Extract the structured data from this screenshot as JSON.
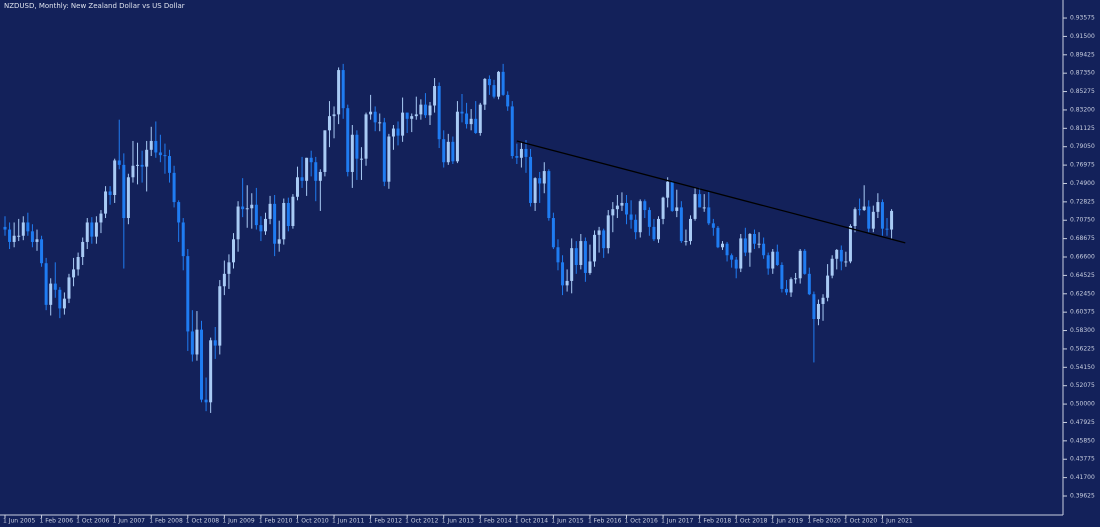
{
  "chart_data": {
    "type": "candlestick",
    "title": "NZDUSD, Monthly: New Zealand Dollar vs US Dollar",
    "background": "#13215a",
    "up_color": "#a9cbf5",
    "down_color": "#1f7cf2",
    "categories": [
      "1 Jun 2005",
      null,
      null,
      null,
      null,
      null,
      null,
      null,
      "1 Feb 2006",
      null,
      null,
      null,
      null,
      null,
      null,
      null,
      "1 Oct 2006",
      null,
      null,
      null,
      null,
      null,
      null,
      null,
      "1 Jun 2007",
      null,
      null,
      null,
      null,
      null,
      null,
      null,
      "1 Feb 2008",
      null,
      null,
      null,
      null,
      null,
      null,
      null,
      "1 Oct 2008",
      null,
      null,
      null,
      null,
      null,
      null,
      null,
      "1 Jun 2009",
      null,
      null,
      null,
      null,
      null,
      null,
      null,
      "1 Feb 2010",
      null,
      null,
      null,
      null,
      null,
      null,
      null,
      "1 Oct 2010",
      null,
      null,
      null,
      null,
      null,
      null,
      null,
      "1 Jun 2011",
      null,
      null,
      null,
      null,
      null,
      null,
      null,
      "1 Feb 2012",
      null,
      null,
      null,
      null,
      null,
      null,
      null,
      "1 Oct 2012",
      null,
      null,
      null,
      null,
      null,
      null,
      null,
      "1 Jun 2013",
      null,
      null,
      null,
      null,
      null,
      null,
      null,
      "1 Feb 2014",
      null,
      null,
      null,
      null,
      null,
      null,
      null,
      "1 Oct 2014",
      null,
      null,
      null,
      null,
      null,
      null,
      null,
      "1 Jun 2015",
      null,
      null,
      null,
      null,
      null,
      null,
      null,
      "1 Feb 2016",
      null,
      null,
      null,
      null,
      null,
      null,
      null,
      "1 Oct 2016",
      null,
      null,
      null,
      null,
      null,
      null,
      null,
      "1 Jun 2017",
      null,
      null,
      null,
      null,
      null,
      null,
      null,
      "1 Feb 2018",
      null,
      null,
      null,
      null,
      null,
      null,
      null,
      "1 Oct 2018",
      null,
      null,
      null,
      null,
      null,
      null,
      null,
      "1 Jun 2019",
      null,
      null,
      null,
      null,
      null,
      null,
      null,
      "1 Feb 2020",
      null,
      null,
      null,
      null,
      null,
      null,
      null,
      "1 Oct 2020",
      null,
      null,
      null,
      null,
      null,
      null,
      null,
      "1 Jun 2021",
      null,
      null
    ],
    "open": [
      0.7,
      0.697,
      0.683,
      0.69,
      0.69,
      0.705,
      0.695,
      0.683,
      0.686,
      0.659,
      0.612,
      0.636,
      0.629,
      0.608,
      0.619,
      0.643,
      0.652,
      0.666,
      0.683,
      0.705,
      0.689,
      0.705,
      0.715,
      0.74,
      0.736,
      0.775,
      0.77,
      0.71,
      0.756,
      0.769,
      0.77,
      0.768,
      0.787,
      0.797,
      0.784,
      0.781,
      0.78,
      0.761,
      0.728,
      0.705,
      0.667,
      0.582,
      0.556,
      0.584,
      0.505,
      0.502,
      0.572,
      0.566,
      0.633,
      0.647,
      0.66,
      0.686,
      0.723,
      0.72,
      0.721,
      0.725,
      0.702,
      0.695,
      0.709,
      0.726,
      0.681,
      0.686,
      0.727,
      0.701,
      0.734,
      0.756,
      0.752,
      0.778,
      0.773,
      0.752,
      0.762,
      0.809,
      0.825,
      0.827,
      0.877,
      0.834,
      0.762,
      0.804,
      0.777,
      0.777,
      0.827,
      0.83,
      0.818,
      0.818,
      0.751,
      0.802,
      0.811,
      0.803,
      0.829,
      0.822,
      0.825,
      0.827,
      0.838,
      0.826,
      0.837,
      0.859,
      0.799,
      0.773,
      0.796,
      0.774,
      0.83,
      0.828,
      0.816,
      0.822,
      0.806,
      0.838,
      0.867,
      0.86,
      0.847,
      0.875,
      0.849,
      0.836,
      0.78,
      0.778,
      0.788,
      0.779,
      0.727,
      0.755,
      0.749,
      0.763,
      0.71,
      0.677,
      0.66,
      0.634,
      0.639,
      0.676,
      0.657,
      0.684,
      0.648,
      0.661,
      0.691,
      0.696,
      0.676,
      0.713,
      0.72,
      0.724,
      0.727,
      0.714,
      0.708,
      0.694,
      0.729,
      0.719,
      0.7,
      0.686,
      0.709,
      0.733,
      0.751,
      0.718,
      0.722,
      0.684,
      0.684,
      0.709,
      0.737,
      0.722,
      0.722,
      0.704,
      0.699,
      0.677,
      0.681,
      0.668,
      0.663,
      0.653,
      0.687,
      0.671,
      0.692,
      0.681,
      0.681,
      0.668,
      0.653,
      0.672,
      0.657,
      0.63,
      0.626,
      0.641,
      0.642,
      0.673,
      0.647,
      0.624,
      0.596,
      0.613,
      0.62,
      0.645,
      0.664,
      0.674,
      0.661,
      0.661,
      0.701,
      0.72,
      0.719,
      0.723,
      0.698,
      0.717,
      0.728,
      0.698,
      0.697
    ],
    "high": [
      0.712,
      0.705,
      0.705,
      0.709,
      0.712,
      0.716,
      0.703,
      0.697,
      0.69,
      0.665,
      0.642,
      0.66,
      0.632,
      0.626,
      0.647,
      0.665,
      0.671,
      0.688,
      0.71,
      0.711,
      0.712,
      0.719,
      0.746,
      0.746,
      0.777,
      0.821,
      0.783,
      0.76,
      0.797,
      0.795,
      0.786,
      0.797,
      0.813,
      0.819,
      0.804,
      0.794,
      0.787,
      0.769,
      0.73,
      0.71,
      0.675,
      0.606,
      0.605,
      0.594,
      0.53,
      0.575,
      0.587,
      0.64,
      0.662,
      0.669,
      0.693,
      0.729,
      0.755,
      0.747,
      0.738,
      0.744,
      0.712,
      0.716,
      0.735,
      0.736,
      0.707,
      0.732,
      0.733,
      0.737,
      0.768,
      0.779,
      0.778,
      0.786,
      0.779,
      0.765,
      0.809,
      0.842,
      0.836,
      0.88,
      0.884,
      0.838,
      0.815,
      0.809,
      0.79,
      0.829,
      0.849,
      0.836,
      0.828,
      0.823,
      0.805,
      0.815,
      0.819,
      0.846,
      0.829,
      0.828,
      0.847,
      0.844,
      0.851,
      0.841,
      0.868,
      0.863,
      0.809,
      0.805,
      0.802,
      0.842,
      0.85,
      0.84,
      0.833,
      0.842,
      0.84,
      0.868,
      0.871,
      0.866,
      0.876,
      0.884,
      0.853,
      0.842,
      0.794,
      0.796,
      0.798,
      0.788,
      0.756,
      0.762,
      0.773,
      0.765,
      0.716,
      0.686,
      0.668,
      0.652,
      0.687,
      0.684,
      0.692,
      0.688,
      0.68,
      0.696,
      0.7,
      0.698,
      0.719,
      0.728,
      0.736,
      0.739,
      0.736,
      0.73,
      0.714,
      0.731,
      0.731,
      0.722,
      0.709,
      0.712,
      0.734,
      0.756,
      0.752,
      0.742,
      0.729,
      0.697,
      0.713,
      0.744,
      0.744,
      0.737,
      0.74,
      0.709,
      0.701,
      0.684,
      0.683,
      0.67,
      0.666,
      0.692,
      0.699,
      0.693,
      0.697,
      0.694,
      0.688,
      0.671,
      0.675,
      0.68,
      0.66,
      0.64,
      0.643,
      0.648,
      0.675,
      0.675,
      0.654,
      0.627,
      0.618,
      0.624,
      0.658,
      0.668,
      0.675,
      0.679,
      0.672,
      0.703,
      0.722,
      0.732,
      0.747,
      0.73,
      0.724,
      0.738,
      0.731,
      0.71,
      0.72
    ],
    "low": [
      0.69,
      0.675,
      0.677,
      0.684,
      0.685,
      0.69,
      0.677,
      0.673,
      0.655,
      0.606,
      0.6,
      0.62,
      0.597,
      0.601,
      0.614,
      0.633,
      0.645,
      0.657,
      0.675,
      0.681,
      0.681,
      0.693,
      0.71,
      0.725,
      0.727,
      0.765,
      0.653,
      0.703,
      0.75,
      0.748,
      0.75,
      0.74,
      0.78,
      0.778,
      0.773,
      0.76,
      0.75,
      0.722,
      0.683,
      0.651,
      0.56,
      0.548,
      0.549,
      0.502,
      0.492,
      0.49,
      0.551,
      0.556,
      0.623,
      0.63,
      0.653,
      0.672,
      0.711,
      0.699,
      0.698,
      0.697,
      0.684,
      0.691,
      0.703,
      0.667,
      0.672,
      0.68,
      0.695,
      0.698,
      0.73,
      0.744,
      0.735,
      0.757,
      0.729,
      0.718,
      0.757,
      0.79,
      0.8,
      0.816,
      0.822,
      0.757,
      0.744,
      0.753,
      0.753,
      0.769,
      0.821,
      0.808,
      0.808,
      0.746,
      0.743,
      0.787,
      0.792,
      0.796,
      0.806,
      0.807,
      0.821,
      0.821,
      0.823,
      0.815,
      0.829,
      0.789,
      0.767,
      0.77,
      0.771,
      0.772,
      0.818,
      0.811,
      0.809,
      0.805,
      0.803,
      0.832,
      0.849,
      0.845,
      0.844,
      0.848,
      0.831,
      0.777,
      0.771,
      0.767,
      0.761,
      0.723,
      0.718,
      0.727,
      0.738,
      0.707,
      0.675,
      0.651,
      0.623,
      0.627,
      0.625,
      0.647,
      0.652,
      0.638,
      0.646,
      0.655,
      0.671,
      0.665,
      0.67,
      0.694,
      0.71,
      0.718,
      0.703,
      0.698,
      0.686,
      0.688,
      0.71,
      0.69,
      0.684,
      0.682,
      0.703,
      0.722,
      0.717,
      0.711,
      0.682,
      0.679,
      0.68,
      0.707,
      0.722,
      0.717,
      0.702,
      0.69,
      0.676,
      0.674,
      0.661,
      0.654,
      0.642,
      0.649,
      0.667,
      0.655,
      0.675,
      0.676,
      0.664,
      0.646,
      0.647,
      0.656,
      0.626,
      0.623,
      0.621,
      0.636,
      0.636,
      0.646,
      0.623,
      0.547,
      0.589,
      0.594,
      0.616,
      0.642,
      0.652,
      0.651,
      0.655,
      0.659,
      0.694,
      0.713,
      0.718,
      0.694,
      0.694,
      0.71,
      0.69,
      0.69,
      0.687
    ],
    "close": [
      0.697,
      0.683,
      0.69,
      0.69,
      0.705,
      0.695,
      0.683,
      0.686,
      0.659,
      0.612,
      0.636,
      0.629,
      0.608,
      0.619,
      0.643,
      0.652,
      0.666,
      0.683,
      0.705,
      0.689,
      0.705,
      0.715,
      0.74,
      0.736,
      0.775,
      0.77,
      0.71,
      0.756,
      0.769,
      0.77,
      0.768,
      0.787,
      0.797,
      0.784,
      0.781,
      0.78,
      0.761,
      0.728,
      0.705,
      0.667,
      0.582,
      0.556,
      0.584,
      0.505,
      0.502,
      0.572,
      0.566,
      0.633,
      0.647,
      0.66,
      0.686,
      0.723,
      0.72,
      0.721,
      0.725,
      0.702,
      0.695,
      0.709,
      0.726,
      0.681,
      0.686,
      0.727,
      0.701,
      0.734,
      0.756,
      0.752,
      0.778,
      0.773,
      0.752,
      0.762,
      0.809,
      0.825,
      0.827,
      0.877,
      0.834,
      0.762,
      0.804,
      0.777,
      0.777,
      0.827,
      0.83,
      0.818,
      0.818,
      0.751,
      0.802,
      0.811,
      0.803,
      0.829,
      0.822,
      0.825,
      0.827,
      0.838,
      0.826,
      0.837,
      0.859,
      0.799,
      0.773,
      0.796,
      0.774,
      0.83,
      0.828,
      0.816,
      0.822,
      0.806,
      0.838,
      0.867,
      0.86,
      0.847,
      0.875,
      0.849,
      0.836,
      0.78,
      0.778,
      0.788,
      0.779,
      0.727,
      0.755,
      0.749,
      0.763,
      0.71,
      0.677,
      0.66,
      0.634,
      0.639,
      0.676,
      0.657,
      0.684,
      0.648,
      0.661,
      0.691,
      0.696,
      0.676,
      0.713,
      0.72,
      0.724,
      0.727,
      0.714,
      0.708,
      0.694,
      0.729,
      0.719,
      0.7,
      0.686,
      0.709,
      0.733,
      0.751,
      0.718,
      0.722,
      0.684,
      0.684,
      0.709,
      0.737,
      0.722,
      0.722,
      0.704,
      0.699,
      0.677,
      0.681,
      0.668,
      0.663,
      0.653,
      0.687,
      0.671,
      0.692,
      0.681,
      0.681,
      0.668,
      0.653,
      0.672,
      0.657,
      0.63,
      0.626,
      0.641,
      0.642,
      0.673,
      0.647,
      0.624,
      0.596,
      0.613,
      0.62,
      0.645,
      0.664,
      0.674,
      0.661,
      0.661,
      0.701,
      0.72,
      0.719,
      0.723,
      0.698,
      0.717,
      0.728,
      0.698,
      0.697,
      0.718
    ],
    "ylim": [
      0.3748,
      0.9561
    ],
    "yticks": [
      {
        "value": 0.93575,
        "label": "0.93575"
      },
      {
        "value": 0.915,
        "label": "0.91500"
      },
      {
        "value": 0.89425,
        "label": "0.89425"
      },
      {
        "value": 0.8735,
        "label": "0.87350"
      },
      {
        "value": 0.85275,
        "label": "0.85275"
      },
      {
        "value": 0.832,
        "label": "0.83200"
      },
      {
        "value": 0.81125,
        "label": "0.81125"
      },
      {
        "value": 0.7905,
        "label": "0.79050"
      },
      {
        "value": 0.76975,
        "label": "0.76975"
      },
      {
        "value": 0.749,
        "label": "0.74900"
      },
      {
        "value": 0.72825,
        "label": "0.72825"
      },
      {
        "value": 0.7075,
        "label": "0.70750"
      },
      {
        "value": 0.68675,
        "label": "0.68675"
      },
      {
        "value": 0.666,
        "label": "0.66600"
      },
      {
        "value": 0.64525,
        "label": "0.64525"
      },
      {
        "value": 0.6245,
        "label": "0.62450"
      },
      {
        "value": 0.60375,
        "label": "0.60375"
      },
      {
        "value": 0.583,
        "label": "0.58300"
      },
      {
        "value": 0.56225,
        "label": "0.56225"
      },
      {
        "value": 0.5415,
        "label": "0.54150"
      },
      {
        "value": 0.52075,
        "label": "0.52075"
      },
      {
        "value": 0.5,
        "label": "0.50000"
      },
      {
        "value": 0.47925,
        "label": "0.47925"
      },
      {
        "value": 0.4585,
        "label": "0.45850"
      },
      {
        "value": 0.43775,
        "label": "0.43775"
      },
      {
        "value": 0.417,
        "label": "0.41700"
      },
      {
        "value": 0.39625,
        "label": "0.39625"
      }
    ],
    "trendline": {
      "color": "#000000",
      "x": [
        112,
        197
      ],
      "y": [
        0.797,
        0.682
      ]
    }
  }
}
